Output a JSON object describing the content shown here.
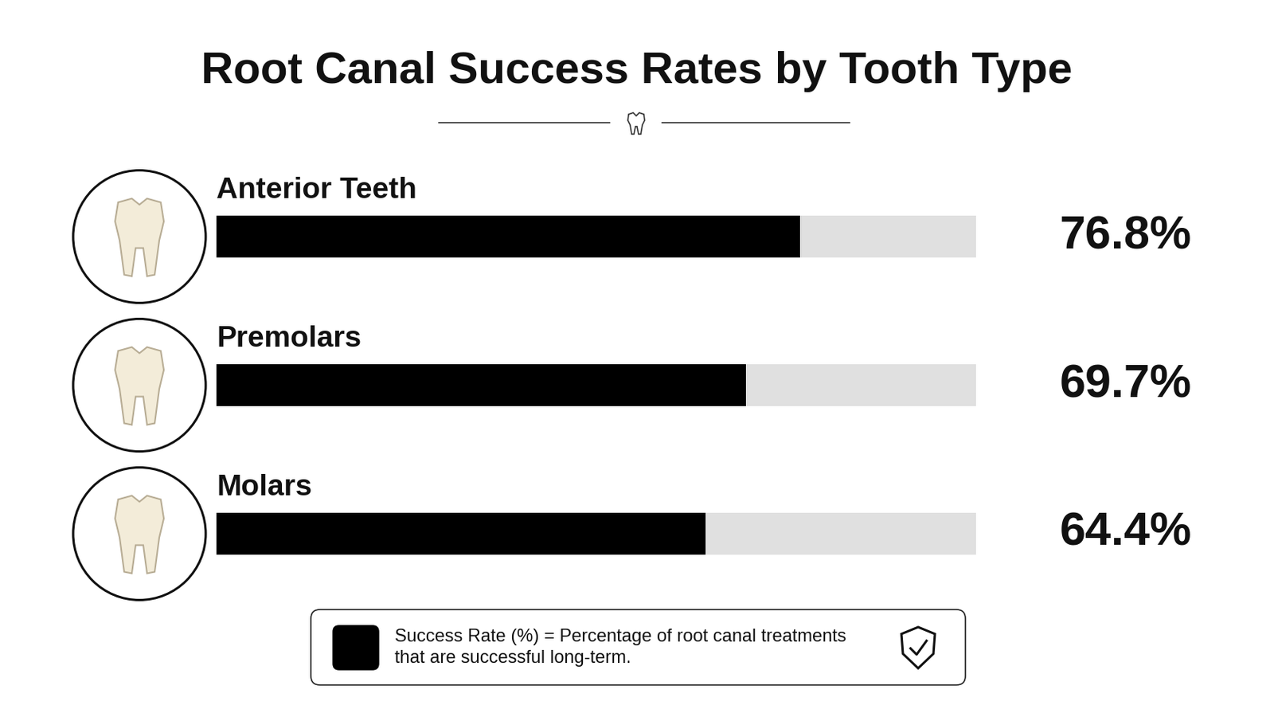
{
  "chart_data": {
    "type": "bar",
    "title": "Root Canal Success Rates by Tooth Type",
    "orientation": "horizontal",
    "categories": [
      "Anterior Teeth",
      "Premolars",
      "Molars"
    ],
    "series": [
      {
        "name": "Success Rate (%) = Percentage of root canal treatments\nthat are successful long-term.",
        "color": "#000000",
        "values": [
          76.8,
          69.7,
          64.4
        ],
        "value_labels": [
          "76.8%",
          "69.7%",
          "64.4%"
        ]
      }
    ],
    "data_labels": true,
    "xlim": [
      0,
      100
    ],
    "tick_labels": false,
    "grid": false
  }
}
